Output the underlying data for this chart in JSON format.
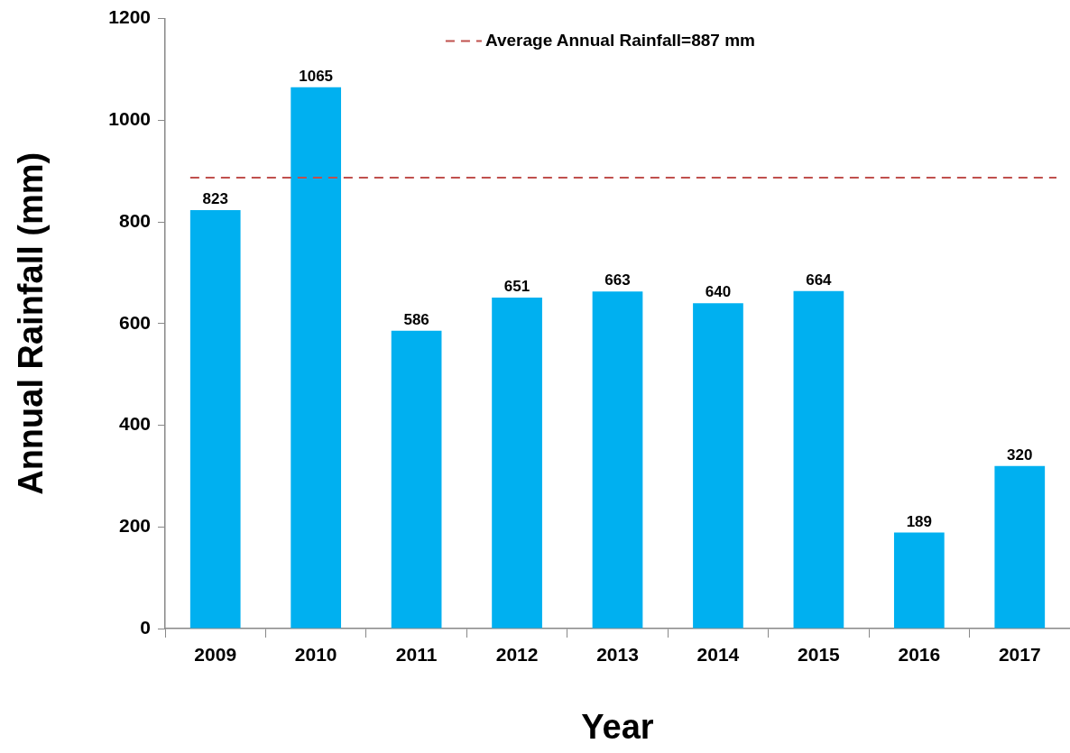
{
  "chart_data": {
    "type": "bar",
    "xlabel": "Year",
    "ylabel": "Annual Rainfall (mm)",
    "categories": [
      "2009",
      "2010",
      "2011",
      "2012",
      "2013",
      "2014",
      "2015",
      "2016",
      "2017"
    ],
    "values": [
      823,
      1065,
      586,
      651,
      663,
      640,
      664,
      189,
      320
    ],
    "color": "#00b0f0",
    "ylim": [
      0,
      1200
    ],
    "yticks": [
      0,
      200,
      400,
      600,
      800,
      1000,
      1200
    ],
    "grid": false,
    "legend": "top",
    "data_labels": true,
    "ref_lines": [
      {
        "axis": "y",
        "value": 887,
        "label": "Average Annual Rainfall=887 mm",
        "color": "#c0504d",
        "line_style": "dashed"
      }
    ]
  }
}
